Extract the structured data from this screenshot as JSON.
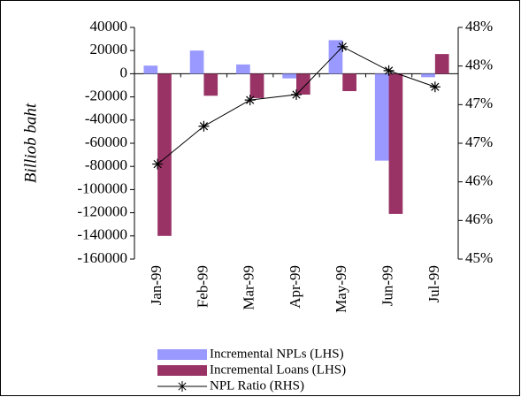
{
  "chart_data": {
    "type": "bar-line",
    "y_label": "Billiob baht",
    "categories": [
      "Jan-99",
      "Feb-99",
      "Mar-99",
      "Apr-99",
      "May-99",
      "Jun-99",
      "Jul-99"
    ],
    "series": [
      {
        "name": "Incremental NPLs (LHS)",
        "type": "bar",
        "color": "#9999ff",
        "values": [
          7000,
          20000,
          8000,
          -4000,
          29000,
          -75000,
          -3000
        ]
      },
      {
        "name": "Incremental Loans (LHS)",
        "type": "bar",
        "color": "#993366",
        "values": [
          -140000,
          -19000,
          -21000,
          -18000,
          -15000,
          -121000,
          17000
        ]
      },
      {
        "name": "NPL Ratio (RHS)",
        "type": "line",
        "axis": "y2",
        "color": "#000000",
        "values": [
          46.23,
          46.72,
          47.06,
          47.13,
          47.75,
          47.44,
          47.23
        ]
      }
    ],
    "ylim": [
      -160000,
      40000
    ],
    "yticks": [
      -160000,
      -140000,
      -120000,
      -100000,
      -80000,
      -60000,
      -40000,
      -20000,
      0,
      20000,
      40000
    ],
    "y2lim": [
      45,
      48
    ],
    "y2ticks": [
      {
        "value": 45,
        "label": "45%"
      },
      {
        "value": 45.5,
        "label": "46%"
      },
      {
        "value": 46,
        "label": "46%"
      },
      {
        "value": 46.5,
        "label": "47%"
      },
      {
        "value": 47,
        "label": "47%"
      },
      {
        "value": 47.5,
        "label": "48%"
      },
      {
        "value": 48,
        "label": "48%"
      }
    ],
    "grid": false
  }
}
